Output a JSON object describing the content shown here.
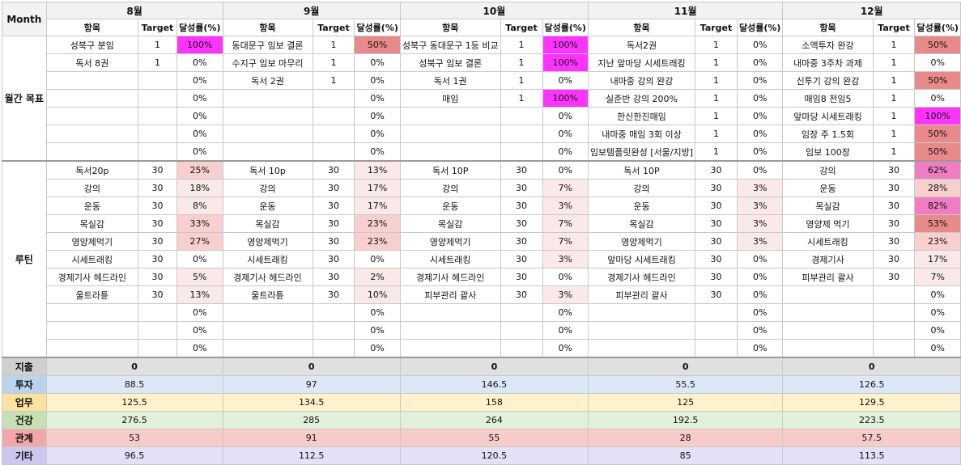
{
  "header": {
    "corner": "Month",
    "months": [
      "8월",
      "9월",
      "10월",
      "11월",
      "12월"
    ],
    "col_item": "항목",
    "col_target": "Target",
    "col_rate": "달성률(%)"
  },
  "sections": [
    {
      "name": "월간 목표",
      "rows": [
        [
          [
            "성북구 분임",
            "1",
            "100%"
          ],
          [
            "동대문구 임보 결론",
            "1",
            "50%"
          ],
          [
            "성북구 동대문구 1등 비교",
            "1",
            "100%"
          ],
          [
            "독서2권",
            "1",
            "0%"
          ],
          [
            "소액투자 완강",
            "1",
            "50%"
          ]
        ],
        [
          [
            "독서 8권",
            "1",
            "0%"
          ],
          [
            "수지구 임보 마무리",
            "1",
            "0%"
          ],
          [
            "성북구 임보 결론",
            "1",
            "100%"
          ],
          [
            "지난 앞마당 시세트래킹",
            "1",
            "0%"
          ],
          [
            "내마중 3주차 과제",
            "1",
            "0%"
          ]
        ],
        [
          [
            "",
            "",
            "0%"
          ],
          [
            "독서 2권",
            "1",
            "0%"
          ],
          [
            "독서 1권",
            "1",
            "0%"
          ],
          [
            "내마중 강의 완강",
            "1",
            "0%"
          ],
          [
            "신투기 강의 완강",
            "1",
            "50%"
          ]
        ],
        [
          [
            "",
            "",
            "0%"
          ],
          [
            "",
            "",
            "0%"
          ],
          [
            "매임",
            "1",
            "100%"
          ],
          [
            "실준반 강의 200%",
            "1",
            "0%"
          ],
          [
            "매임8 전임5",
            "1",
            "0%"
          ]
        ],
        [
          [
            "",
            "",
            "0%"
          ],
          [
            "",
            "",
            "0%"
          ],
          [
            "",
            "",
            "0%"
          ],
          [
            "한신한진매임",
            "1",
            "0%"
          ],
          [
            "앞마당 시세트래킹",
            "1",
            "100%"
          ]
        ],
        [
          [
            "",
            "",
            "0%"
          ],
          [
            "",
            "",
            "0%"
          ],
          [
            "",
            "",
            "0%"
          ],
          [
            "내마중 매임 3회 이상",
            "1",
            "0%"
          ],
          [
            "임장 주 1.5회",
            "1",
            "50%"
          ]
        ],
        [
          [
            "",
            "",
            "0%"
          ],
          [
            "",
            "",
            "0%"
          ],
          [
            "",
            "",
            "0%"
          ],
          [
            "임보템플릿완성 [서울/지방]",
            "1",
            "0%"
          ],
          [
            "임보 100장",
            "1",
            "50%"
          ]
        ]
      ]
    },
    {
      "name": "루틴",
      "rows": [
        [
          [
            "독서20p",
            "30",
            "25%"
          ],
          [
            "독서 10p",
            "30",
            "13%"
          ],
          [
            "독서 10P",
            "30",
            "0%"
          ],
          [
            "독서 10P",
            "30",
            "0%"
          ],
          [
            "강의",
            "30",
            "62%"
          ]
        ],
        [
          [
            "강의",
            "30",
            "18%"
          ],
          [
            "강의",
            "30",
            "17%"
          ],
          [
            "강의",
            "30",
            "7%"
          ],
          [
            "강의",
            "30",
            "3%"
          ],
          [
            "운동",
            "30",
            "28%"
          ]
        ],
        [
          [
            "운동",
            "30",
            "8%"
          ],
          [
            "운동",
            "30",
            "17%"
          ],
          [
            "운동",
            "30",
            "3%"
          ],
          [
            "운동",
            "30",
            "3%"
          ],
          [
            "목실감",
            "30",
            "82%"
          ]
        ],
        [
          [
            "목실감",
            "30",
            "33%"
          ],
          [
            "목실감",
            "30",
            "23%"
          ],
          [
            "목실감",
            "30",
            "7%"
          ],
          [
            "목실감",
            "30",
            "3%"
          ],
          [
            "영양제 먹기",
            "30",
            "53%"
          ]
        ],
        [
          [
            "영양제먹기",
            "30",
            "27%"
          ],
          [
            "영양제먹기",
            "30",
            "23%"
          ],
          [
            "영양제먹기",
            "30",
            "7%"
          ],
          [
            "영양제먹기",
            "30",
            "3%"
          ],
          [
            "시세트래킹",
            "30",
            "23%"
          ]
        ],
        [
          [
            "시세트래킹",
            "30",
            "0%"
          ],
          [
            "시세트래킹",
            "30",
            "0%"
          ],
          [
            "시세트래킹",
            "30",
            "3%"
          ],
          [
            "앞마당 시세트래킹",
            "30",
            "0%"
          ],
          [
            "경제기사",
            "30",
            "17%"
          ]
        ],
        [
          [
            "경제기사 헤드라인",
            "30",
            "5%"
          ],
          [
            "경제기사 헤드라인",
            "30",
            "2%"
          ],
          [
            "경제기사 헤드라인",
            "30",
            "0%"
          ],
          [
            "경제기사 헤드라인",
            "30",
            "0%"
          ],
          [
            "피부관리 괄사",
            "30",
            "7%"
          ]
        ],
        [
          [
            "울트라튠",
            "30",
            "13%"
          ],
          [
            "울트라튠",
            "30",
            "10%"
          ],
          [
            "피부관리 괄사",
            "30",
            "3%"
          ],
          [
            "피부관리 괄사",
            "30",
            "0%"
          ],
          [
            "",
            "",
            "0%"
          ]
        ],
        [
          [
            "",
            "",
            "0%"
          ],
          [
            "",
            "",
            "0%"
          ],
          [
            "",
            "",
            "0%"
          ],
          [
            "",
            "",
            "0%"
          ],
          [
            "",
            "",
            "0%"
          ]
        ],
        [
          [
            "",
            "",
            "0%"
          ],
          [
            "",
            "",
            "0%"
          ],
          [
            "",
            "",
            "0%"
          ],
          [
            "",
            "",
            "0%"
          ],
          [
            "",
            "",
            "0%"
          ]
        ],
        [
          [
            "",
            "",
            "0%"
          ],
          [
            "",
            "",
            "0%"
          ],
          [
            "",
            "",
            "0%"
          ],
          [
            "",
            "",
            "0%"
          ],
          [
            "",
            "",
            "0%"
          ]
        ]
      ]
    }
  ],
  "summary": [
    {
      "label": "지출",
      "values": [
        "0",
        "0",
        "0",
        "0",
        "0"
      ],
      "bold": true,
      "bg": "#e0e0e0",
      "label_bg": "#d0d0d0"
    },
    {
      "label": "투자",
      "values": [
        "88.5",
        "97",
        "146.5",
        "55.5",
        "126.5"
      ],
      "bold": false,
      "bg": "#dce8f6",
      "label_bg": "#bcd3ee"
    },
    {
      "label": "업무",
      "values": [
        "125.5",
        "134.5",
        "158",
        "125",
        "129.5"
      ],
      "bold": false,
      "bg": "#fff1cc",
      "label_bg": "#fbe2a0"
    },
    {
      "label": "건강",
      "values": [
        "276.5",
        "285",
        "264",
        "192.5",
        "223.5"
      ],
      "bold": false,
      "bg": "#e2efd9",
      "label_bg": "#c6e0b4"
    },
    {
      "label": "관계",
      "values": [
        "53",
        "91",
        "55",
        "28",
        "57.5"
      ],
      "bold": false,
      "bg": "#f8cbcb",
      "label_bg": "#f2a8a8"
    },
    {
      "label": "기타",
      "values": [
        "96.5",
        "112.5",
        "120.5",
        "85",
        "113.5"
      ],
      "bold": false,
      "bg": "#e4e0f5",
      "label_bg": "#cdc6ee"
    }
  ],
  "colors": {
    "rate_full": "#ff33ff",
    "rate_high": "#f07cc4",
    "rate_mid": "#e88a8a",
    "rate_low": "#f8cfcf",
    "rate_faint": "#fbe9e9",
    "header_bg": "#f2f2f2"
  }
}
